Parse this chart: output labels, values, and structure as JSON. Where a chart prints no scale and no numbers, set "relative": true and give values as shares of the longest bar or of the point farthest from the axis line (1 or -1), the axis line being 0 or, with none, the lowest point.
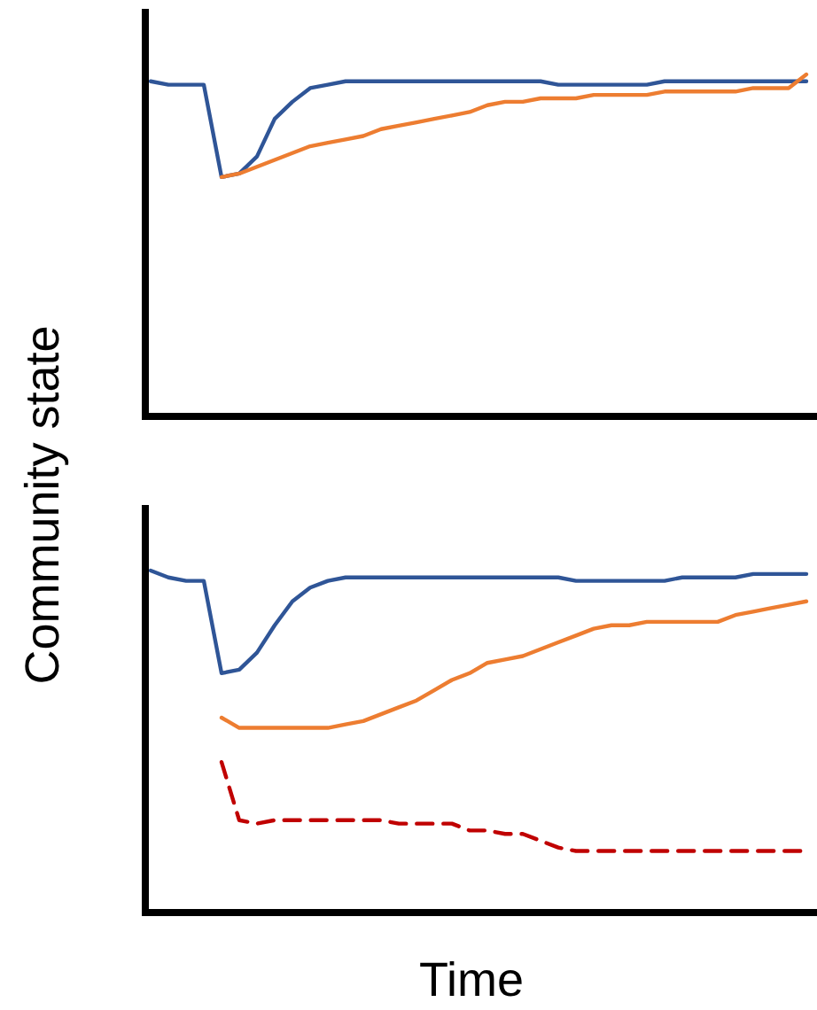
{
  "chart_data": [
    {
      "type": "line",
      "relative": true,
      "tick_labels": false,
      "ylabel": "Community state",
      "categories": [
        null,
        null,
        null,
        null,
        null,
        null,
        null,
        null,
        null,
        null,
        null,
        null,
        null,
        null,
        null,
        null,
        null,
        null,
        null,
        null,
        null,
        null,
        null,
        null,
        null,
        null,
        null,
        null,
        null,
        null,
        null,
        null,
        null,
        null,
        null,
        null,
        null,
        null
      ],
      "series": [
        {
          "color": "#2f5597",
          "values": [
            0.98,
            0.97,
            0.97,
            0.97,
            0.7,
            0.71,
            0.76,
            0.87,
            0.92,
            0.96,
            0.97,
            0.98,
            0.98,
            0.98,
            0.98,
            0.98,
            0.98,
            0.98,
            0.98,
            0.98,
            0.98,
            0.98,
            0.98,
            0.97,
            0.97,
            0.97,
            0.97,
            0.97,
            0.97,
            0.98,
            0.98,
            0.98,
            0.98,
            0.98,
            0.98,
            0.98,
            0.98,
            0.98
          ]
        },
        {
          "color": "#ed7d31",
          "values": [
            null,
            null,
            null,
            null,
            0.7,
            0.71,
            0.73,
            0.75,
            0.77,
            0.79,
            0.8,
            0.81,
            0.82,
            0.84,
            0.85,
            0.86,
            0.87,
            0.88,
            0.89,
            0.91,
            0.92,
            0.92,
            0.93,
            0.93,
            0.93,
            0.94,
            0.94,
            0.94,
            0.94,
            0.95,
            0.95,
            0.95,
            0.95,
            0.95,
            0.96,
            0.96,
            0.96,
            1.0
          ]
        }
      ]
    },
    {
      "type": "line",
      "relative": true,
      "tick_labels": false,
      "xlabel": "Time",
      "categories": [
        null,
        null,
        null,
        null,
        null,
        null,
        null,
        null,
        null,
        null,
        null,
        null,
        null,
        null,
        null,
        null,
        null,
        null,
        null,
        null,
        null,
        null,
        null,
        null,
        null,
        null,
        null,
        null,
        null,
        null,
        null,
        null,
        null,
        null,
        null,
        null,
        null,
        null
      ],
      "series": [
        {
          "color": "#2f5597",
          "values": [
            1.0,
            0.98,
            0.97,
            0.97,
            0.7,
            0.71,
            0.76,
            0.84,
            0.91,
            0.95,
            0.97,
            0.98,
            0.98,
            0.98,
            0.98,
            0.98,
            0.98,
            0.98,
            0.98,
            0.98,
            0.98,
            0.98,
            0.98,
            0.98,
            0.97,
            0.97,
            0.97,
            0.97,
            0.97,
            0.97,
            0.98,
            0.98,
            0.98,
            0.98,
            0.99,
            0.99,
            0.99,
            0.99
          ]
        },
        {
          "color": "#ed7d31",
          "values": [
            null,
            null,
            null,
            null,
            0.57,
            0.54,
            0.54,
            0.54,
            0.54,
            0.54,
            0.54,
            0.55,
            0.56,
            0.58,
            0.6,
            0.62,
            0.65,
            0.68,
            0.7,
            0.73,
            0.74,
            0.75,
            0.77,
            0.79,
            0.81,
            0.83,
            0.84,
            0.84,
            0.85,
            0.85,
            0.85,
            0.85,
            0.85,
            0.87,
            0.88,
            0.89,
            0.9,
            0.91
          ]
        },
        {
          "color": "#c00000",
          "line_style": "dashed",
          "values": [
            null,
            null,
            null,
            null,
            0.44,
            0.27,
            0.26,
            0.27,
            0.27,
            0.27,
            0.27,
            0.27,
            0.27,
            0.27,
            0.26,
            0.26,
            0.26,
            0.26,
            0.24,
            0.24,
            0.23,
            0.23,
            0.21,
            0.19,
            0.18,
            0.18,
            0.18,
            0.18,
            0.18,
            0.18,
            0.18,
            0.18,
            0.18,
            0.18,
            0.18,
            0.18,
            0.18,
            0.18
          ]
        }
      ]
    }
  ]
}
